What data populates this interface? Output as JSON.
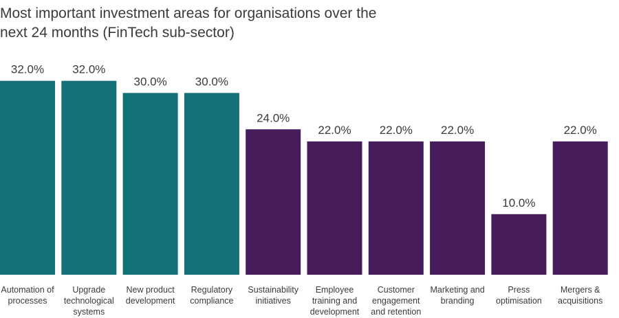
{
  "chart_data": {
    "type": "bar",
    "title": "Most important investment areas for organisations over the next 24 months (FinTech sub-sector)",
    "categories": [
      "Automation of processes",
      "Upgrade technological systems",
      "New product development",
      "Regulatory compliance",
      "Sustainability initiatives",
      "Employee training and development",
      "Customer engagement and retention",
      "Marketing and branding",
      "Press optimisation",
      "Mergers & acquisitions"
    ],
    "values": [
      32,
      32,
      30,
      30,
      24,
      22,
      22,
      22,
      10,
      22
    ],
    "value_labels": [
      "32.0%",
      "32.0%",
      "30.0%",
      "30.0%",
      "24.0%",
      "22.0%",
      "22.0%",
      "22.0%",
      "10.0%",
      "22.0%"
    ],
    "colors": [
      "#137177",
      "#137177",
      "#137177",
      "#137177",
      "#461c5b",
      "#461c5b",
      "#461c5b",
      "#461c5b",
      "#461c5b",
      "#461c5b"
    ],
    "ylim": [
      0,
      45
    ]
  }
}
